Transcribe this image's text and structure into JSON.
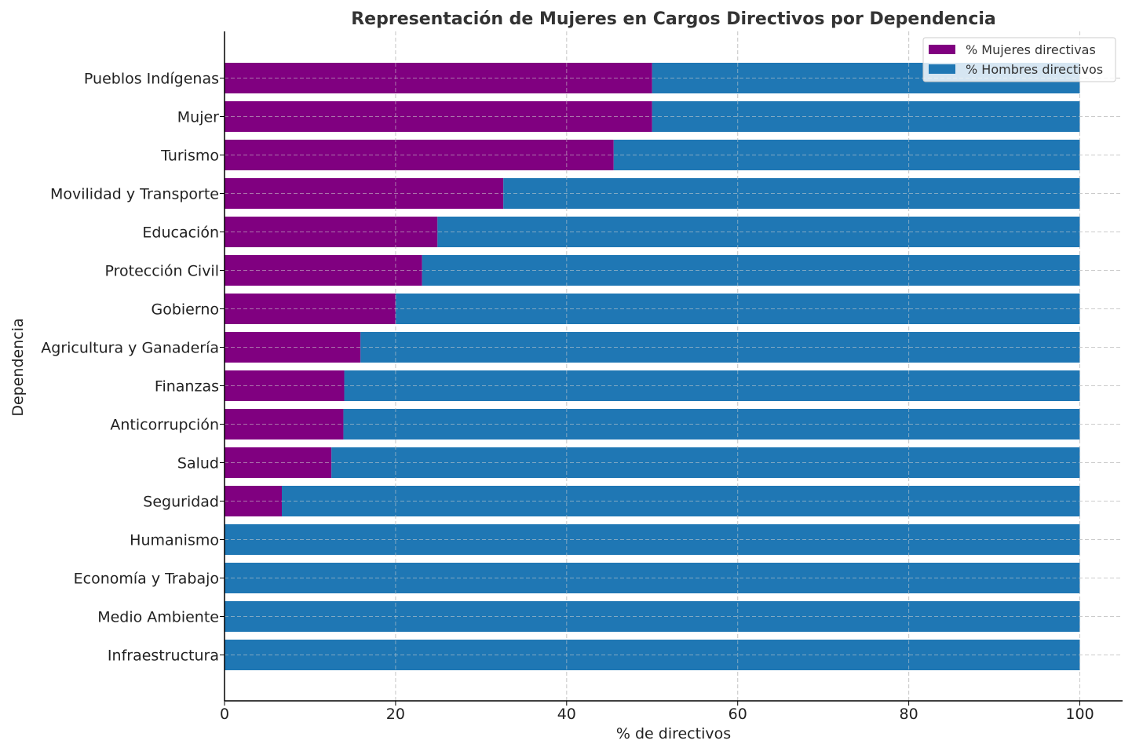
{
  "chart_data": {
    "type": "bar",
    "orientation": "horizontal",
    "stacked": true,
    "title": "Representación de Mujeres en Cargos Directivos por Dependencia",
    "xlabel": "% de directivos",
    "ylabel": "Dependencia",
    "xlim": [
      0,
      105
    ],
    "xticks": [
      0,
      20,
      40,
      60,
      80,
      100
    ],
    "grid": true,
    "legend_position": "top-right",
    "categories": [
      "Pueblos Indígenas",
      "Mujer",
      "Turismo",
      "Movilidad y Transporte",
      "Educación",
      "Protección Civil",
      "Gobierno",
      "Agricultura y Ganadería",
      "Finanzas",
      "Anticorrupción",
      "Salud",
      "Seguridad",
      "Humanismo",
      "Economía y Trabajo",
      "Medio Ambiente",
      "Infraestructura"
    ],
    "series": [
      {
        "name": "% Mujeres directivas",
        "color": "#800080",
        "values": [
          50.0,
          50.0,
          45.5,
          32.6,
          24.9,
          23.1,
          20.0,
          15.9,
          14.0,
          13.9,
          12.5,
          6.7,
          0,
          0,
          0,
          0
        ]
      },
      {
        "name": "% Hombres directivos",
        "color": "#1f77b4",
        "values": [
          50.0,
          50.0,
          54.5,
          67.4,
          75.1,
          76.9,
          80.0,
          84.1,
          86.0,
          86.1,
          87.5,
          93.3,
          100,
          100,
          100,
          100
        ]
      }
    ]
  }
}
